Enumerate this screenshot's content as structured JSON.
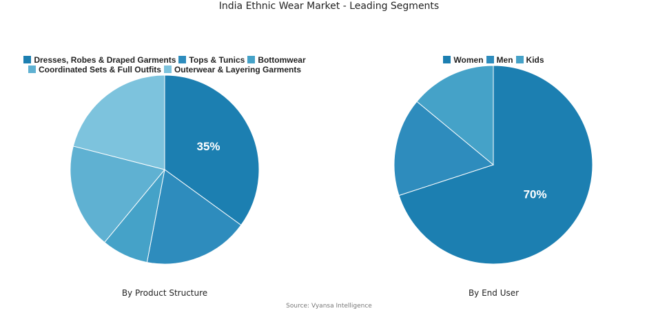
{
  "title": "India Ethnic Wear Market - Leading Segments",
  "source": "Source: Vyansa Intelligence",
  "chart_data": [
    {
      "type": "pie",
      "caption": "By Product Structure",
      "categories": [
        "Dresses, Robes & Draped Garments",
        "Tops & Tunics",
        "Bottomwear",
        "Coordinated Sets & Full Outfits",
        "Outerwear & Layering Garments"
      ],
      "values": [
        35,
        18,
        8,
        18,
        21
      ],
      "colors": [
        "#1c7fb1",
        "#2e8cbd",
        "#45a2c8",
        "#5fb1d2",
        "#7dc3dd"
      ],
      "data_labels": [
        "35%",
        "",
        "",
        "",
        ""
      ],
      "legend_rows": [
        [
          0,
          1,
          2
        ],
        [
          3,
          4
        ]
      ],
      "legend_position": "top"
    },
    {
      "type": "pie",
      "caption": "By End User",
      "categories": [
        "Women",
        "Men",
        "Kids"
      ],
      "values": [
        70,
        16,
        14
      ],
      "colors": [
        "#1c7fb1",
        "#2e8cbd",
        "#45a2c8"
      ],
      "data_labels": [
        "70%",
        "",
        ""
      ],
      "legend_rows": [
        [
          0,
          1,
          2
        ]
      ],
      "legend_position": "top"
    }
  ]
}
